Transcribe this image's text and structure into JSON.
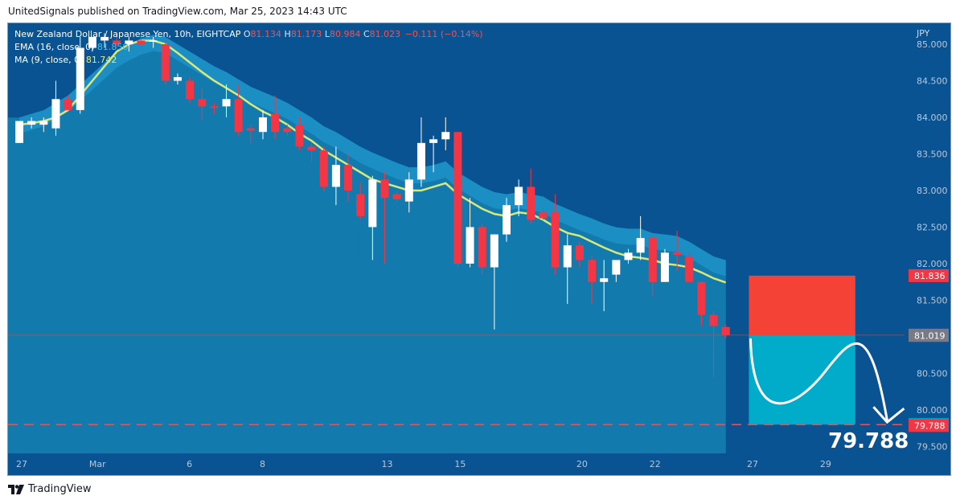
{
  "header": {
    "publisher": "UnitedSignals published on TradingView.com, Mar 25, 2023 14:43 UTC"
  },
  "legend": {
    "symbol": "New Zealand Dollar / Japanese Yen, 10h, EIGHTCAP",
    "o_label": "O",
    "o_value": "81.134",
    "h_label": "H",
    "h_value": "81.173",
    "l_label": "L",
    "l_value": "80.984",
    "c_label": "C",
    "c_value": "81.023",
    "change": "−0.111 (−0.14%)",
    "ema_label": "EMA (16, close, 0)",
    "ema_value": "81.850",
    "ma_label": "MA (9, close, 0)",
    "ma_value": "81.742"
  },
  "footer": {
    "brand": "TradingView"
  },
  "big_price": "79.788",
  "colors": {
    "background": "#0a5393",
    "cloud": "#137aad",
    "cloud_band": "#1d92c7",
    "ma_line": "#d9e87a",
    "up_candle": "#ffffff",
    "down_candle": "#f23645",
    "stop_zone": "#f44336",
    "target_zone": "#00acc9"
  },
  "chart_data": {
    "type": "candlestick",
    "symbol": "NZDJPY",
    "timeframe": "10h",
    "currency": "JPY",
    "y_ticks": [
      "85.000",
      "84.500",
      "84.000",
      "83.500",
      "83.000",
      "82.500",
      "82.000",
      "81.500",
      "81.000",
      "80.500",
      "80.000",
      "79.500"
    ],
    "y_range": [
      79.5,
      85.2
    ],
    "x_ticks": [
      {
        "label": "27",
        "index": 0
      },
      {
        "label": "Mar",
        "index": 6
      },
      {
        "label": "6",
        "index": 14
      },
      {
        "label": "8",
        "index": 20
      },
      {
        "label": "13",
        "index": 30
      },
      {
        "label": "15",
        "index": 36
      },
      {
        "label": "20",
        "index": 46
      },
      {
        "label": "22",
        "index": 52
      },
      {
        "label": "27",
        "index": 60
      },
      {
        "label": "29",
        "index": 66
      }
    ],
    "candles": [
      {
        "o": 83.65,
        "h": 83.95,
        "l": 83.65,
        "c": 83.95
      },
      {
        "o": 83.9,
        "h": 84.0,
        "l": 83.85,
        "c": 83.95
      },
      {
        "o": 83.9,
        "h": 84.0,
        "l": 83.8,
        "c": 83.95
      },
      {
        "o": 83.85,
        "h": 84.5,
        "l": 83.75,
        "c": 84.25
      },
      {
        "o": 84.25,
        "h": 84.3,
        "l": 84.1,
        "c": 84.1
      },
      {
        "o": 84.1,
        "h": 85.1,
        "l": 84.05,
        "c": 84.95
      },
      {
        "o": 84.95,
        "h": 85.1,
        "l": 84.9,
        "c": 85.1
      },
      {
        "o": 85.05,
        "h": 85.15,
        "l": 84.95,
        "c": 85.1
      },
      {
        "o": 85.05,
        "h": 85.15,
        "l": 84.95,
        "c": 85.0
      },
      {
        "o": 85.0,
        "h": 85.1,
        "l": 84.9,
        "c": 85.05
      },
      {
        "o": 85.05,
        "h": 85.1,
        "l": 84.95,
        "c": 85.0
      },
      {
        "o": 85.05,
        "h": 85.1,
        "l": 84.95,
        "c": 85.05
      },
      {
        "o": 85.0,
        "h": 85.05,
        "l": 84.45,
        "c": 84.5
      },
      {
        "o": 84.5,
        "h": 84.6,
        "l": 84.45,
        "c": 84.55
      },
      {
        "o": 84.5,
        "h": 84.55,
        "l": 84.2,
        "c": 84.25
      },
      {
        "o": 84.25,
        "h": 84.4,
        "l": 83.95,
        "c": 84.15
      },
      {
        "o": 84.15,
        "h": 84.2,
        "l": 84.05,
        "c": 84.13
      },
      {
        "o": 84.15,
        "h": 84.45,
        "l": 84.0,
        "c": 84.25
      },
      {
        "o": 84.25,
        "h": 84.45,
        "l": 83.75,
        "c": 83.8
      },
      {
        "o": 83.85,
        "h": 83.9,
        "l": 83.65,
        "c": 83.82
      },
      {
        "o": 83.8,
        "h": 84.1,
        "l": 83.7,
        "c": 84.0
      },
      {
        "o": 84.05,
        "h": 84.3,
        "l": 83.7,
        "c": 83.8
      },
      {
        "o": 83.85,
        "h": 83.9,
        "l": 83.75,
        "c": 83.8
      },
      {
        "o": 83.9,
        "h": 84.0,
        "l": 83.55,
        "c": 83.6
      },
      {
        "o": 83.6,
        "h": 83.65,
        "l": 83.4,
        "c": 83.55
      },
      {
        "o": 83.55,
        "h": 83.6,
        "l": 83.0,
        "c": 83.05
      },
      {
        "o": 83.05,
        "h": 83.6,
        "l": 82.8,
        "c": 83.35
      },
      {
        "o": 83.35,
        "h": 83.5,
        "l": 82.85,
        "c": 83.0
      },
      {
        "o": 82.95,
        "h": 83.1,
        "l": 82.6,
        "c": 82.65
      },
      {
        "o": 82.5,
        "h": 83.2,
        "l": 82.05,
        "c": 83.15
      },
      {
        "o": 83.15,
        "h": 83.25,
        "l": 82.0,
        "c": 82.9
      },
      {
        "o": 82.95,
        "h": 83.0,
        "l": 82.85,
        "c": 82.88
      },
      {
        "o": 82.85,
        "h": 83.25,
        "l": 82.7,
        "c": 83.15
      },
      {
        "o": 83.15,
        "h": 84.0,
        "l": 83.05,
        "c": 83.65
      },
      {
        "o": 83.65,
        "h": 83.75,
        "l": 83.25,
        "c": 83.7
      },
      {
        "o": 83.7,
        "h": 84.0,
        "l": 83.55,
        "c": 83.8
      },
      {
        "o": 83.8,
        "h": 83.8,
        "l": 81.95,
        "c": 82.0
      },
      {
        "o": 82.0,
        "h": 82.9,
        "l": 81.95,
        "c": 82.5
      },
      {
        "o": 82.5,
        "h": 82.55,
        "l": 81.85,
        "c": 81.95
      },
      {
        "o": 81.95,
        "h": 82.4,
        "l": 81.1,
        "c": 82.4
      },
      {
        "o": 82.4,
        "h": 82.9,
        "l": 82.3,
        "c": 82.8
      },
      {
        "o": 82.8,
        "h": 83.15,
        "l": 82.65,
        "c": 83.05
      },
      {
        "o": 83.05,
        "h": 83.3,
        "l": 82.55,
        "c": 82.6
      },
      {
        "o": 82.7,
        "h": 82.8,
        "l": 82.6,
        "c": 82.62
      },
      {
        "o": 82.7,
        "h": 82.95,
        "l": 81.85,
        "c": 81.95
      },
      {
        "o": 81.95,
        "h": 82.4,
        "l": 81.45,
        "c": 82.25
      },
      {
        "o": 82.25,
        "h": 82.3,
        "l": 81.95,
        "c": 82.05
      },
      {
        "o": 82.05,
        "h": 82.1,
        "l": 81.45,
        "c": 81.75
      },
      {
        "o": 81.75,
        "h": 82.05,
        "l": 81.35,
        "c": 81.8
      },
      {
        "o": 81.85,
        "h": 82.05,
        "l": 81.75,
        "c": 82.05
      },
      {
        "o": 82.05,
        "h": 82.2,
        "l": 82.0,
        "c": 82.15
      },
      {
        "o": 82.15,
        "h": 82.65,
        "l": 82.05,
        "c": 82.35
      },
      {
        "o": 82.35,
        "h": 82.4,
        "l": 81.55,
        "c": 81.75
      },
      {
        "o": 81.75,
        "h": 82.2,
        "l": 81.75,
        "c": 82.15
      },
      {
        "o": 82.15,
        "h": 82.45,
        "l": 81.9,
        "c": 82.12
      },
      {
        "o": 82.1,
        "h": 82.15,
        "l": 81.75,
        "c": 81.75
      },
      {
        "o": 81.75,
        "h": 81.75,
        "l": 81.15,
        "c": 81.3
      },
      {
        "o": 81.3,
        "h": 81.35,
        "l": 80.45,
        "c": 81.15
      },
      {
        "o": 81.134,
        "h": 81.173,
        "l": 80.984,
        "c": 81.023
      }
    ],
    "ema_16": [
      83.8,
      83.85,
      83.9,
      84.0,
      84.1,
      84.25,
      84.4,
      84.55,
      84.7,
      84.8,
      84.88,
      84.93,
      84.9,
      84.8,
      84.7,
      84.6,
      84.5,
      84.42,
      84.32,
      84.22,
      84.15,
      84.08,
      84.0,
      83.9,
      83.8,
      83.68,
      83.6,
      83.5,
      83.4,
      83.32,
      83.25,
      83.18,
      83.12,
      83.12,
      83.15,
      83.2,
      83.05,
      82.95,
      82.85,
      82.78,
      82.75,
      82.78,
      82.75,
      82.72,
      82.62,
      82.55,
      82.48,
      82.42,
      82.35,
      82.3,
      82.28,
      82.28,
      82.22,
      82.2,
      82.18,
      82.1,
      82.0,
      81.9,
      81.85
    ],
    "ma_9": [
      83.9,
      83.92,
      83.95,
      84.0,
      84.1,
      84.3,
      84.5,
      84.7,
      84.9,
      85.0,
      85.05,
      85.05,
      85.0,
      84.88,
      84.75,
      84.62,
      84.5,
      84.4,
      84.3,
      84.18,
      84.08,
      84.0,
      83.9,
      83.78,
      83.68,
      83.55,
      83.45,
      83.35,
      83.25,
      83.15,
      83.1,
      83.05,
      83.0,
      83.0,
      83.05,
      83.1,
      82.95,
      82.85,
      82.75,
      82.68,
      82.65,
      82.7,
      82.68,
      82.6,
      82.5,
      82.42,
      82.38,
      82.3,
      82.22,
      82.15,
      82.1,
      82.08,
      82.05,
      82.0,
      81.98,
      81.95,
      81.88,
      81.8,
      81.742
    ],
    "last_price": 81.023,
    "price_labels": [
      {
        "value": 81.836,
        "label": "81.836",
        "color": "#f23645"
      },
      {
        "value": 81.023,
        "label": "81.023",
        "color": "#f23645"
      },
      {
        "value": 81.019,
        "label": "81.019",
        "color": "#787b86"
      },
      {
        "value": 79.8,
        "label": "79.800",
        "color": "#00acc9"
      },
      {
        "value": 79.788,
        "label": "79.788",
        "color": "#f23645"
      }
    ],
    "position": {
      "side": "short",
      "entry": 81.023,
      "stop": 81.836,
      "target": 79.8,
      "start_index": 59.5,
      "end_index": 68.5
    },
    "dashed_level": 79.8
  }
}
